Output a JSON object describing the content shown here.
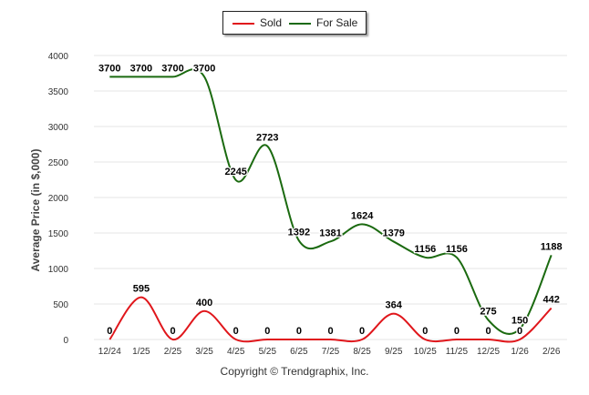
{
  "chart_data": {
    "type": "line",
    "legend": {
      "position": "top-center",
      "items": [
        {
          "name": "Sold",
          "color": "#e0161b"
        },
        {
          "name": "For Sale",
          "color": "#1b6a10"
        }
      ]
    },
    "categories": [
      "12/24",
      "1/25",
      "2/25",
      "3/25",
      "4/25",
      "5/25",
      "6/25",
      "7/25",
      "8/25",
      "9/25",
      "10/25",
      "11/25",
      "12/25",
      "1/26",
      "2/26"
    ],
    "series": [
      {
        "name": "Sold",
        "color": "#e0161b",
        "values": [
          0,
          595,
          0,
          400,
          0,
          0,
          0,
          0,
          0,
          364,
          0,
          0,
          0,
          0,
          442
        ]
      },
      {
        "name": "For Sale",
        "color": "#1b6a10",
        "values": [
          3700,
          3700,
          3700,
          3700,
          2245,
          2723,
          1392,
          1381,
          1624,
          1379,
          1156,
          1156,
          275,
          150,
          1188
        ]
      }
    ],
    "ylabel": "Average Price (in $,000)",
    "xlabel": "",
    "ylim": [
      0,
      4000
    ],
    "yticks": [
      0,
      500,
      1000,
      1500,
      2000,
      2500,
      3000,
      3500,
      4000
    ],
    "grid": true
  },
  "footer": {
    "credit": "Copyright © Trendgraphix, Inc."
  }
}
